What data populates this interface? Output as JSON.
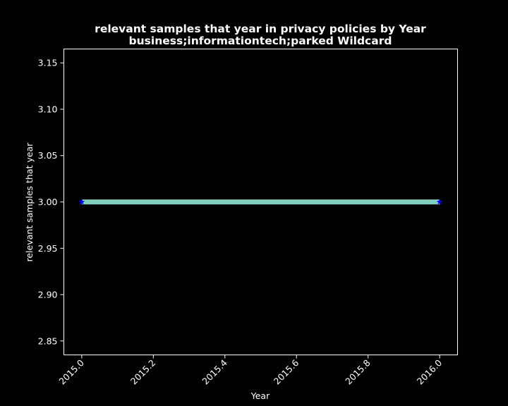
{
  "chart_data": {
    "type": "line",
    "title": "relevant samples that year in privacy policies by Year",
    "subtitle": "business;informationtech;parked Wildcard",
    "xlabel": "Year",
    "ylabel": "relevant samples that year",
    "xlim": [
      2014.95,
      2016.05
    ],
    "ylim": [
      2.835,
      3.165
    ],
    "x_ticks": [
      2015.0,
      2015.2,
      2015.4,
      2015.6,
      2015.8,
      2016.0
    ],
    "x_tick_labels": [
      "2015.0",
      "2015.2",
      "2015.4",
      "2015.6",
      "2015.8",
      "2016.0"
    ],
    "y_ticks": [
      2.85,
      2.9,
      2.95,
      3.0,
      3.05,
      3.1,
      3.15
    ],
    "y_tick_labels": [
      "2.85",
      "2.90",
      "2.95",
      "3.00",
      "3.05",
      "3.10",
      "3.15"
    ],
    "grid": false,
    "series": [
      {
        "x": [
          2015.0,
          2016.0
        ],
        "y": [
          3.0,
          3.0
        ],
        "line_color": "#7fcdbb",
        "marker_color": "#0000ff",
        "marker": "star"
      }
    ],
    "background_color": "#000000",
    "foreground_color": "#ffffff"
  }
}
